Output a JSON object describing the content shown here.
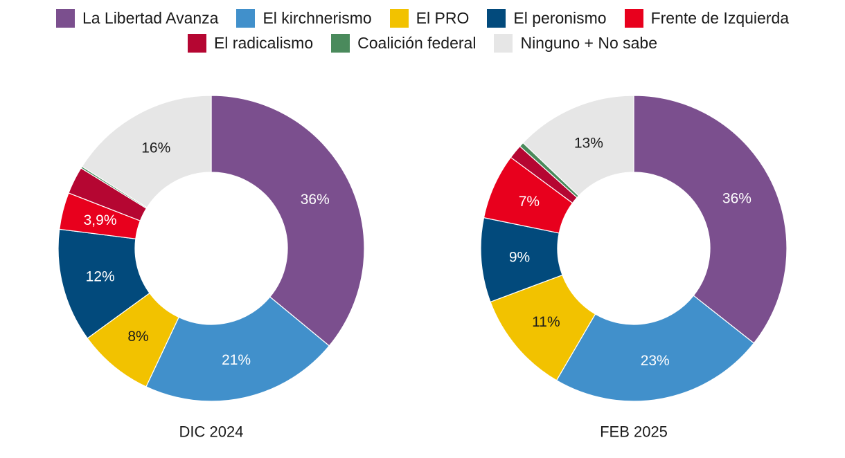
{
  "legend": [
    {
      "name": "La Libertad Avanza",
      "color": "#7b4f8e"
    },
    {
      "name": "El kirchnerismo",
      "color": "#4190cb"
    },
    {
      "name": "El PRO",
      "color": "#f2c200"
    },
    {
      "name": "El peronismo",
      "color": "#024a7c"
    },
    {
      "name": "Frente de Izquierda",
      "color": "#e8001d"
    },
    {
      "name": "El radicalismo",
      "color": "#b50632"
    },
    {
      "name": "Coalición federal",
      "color": "#4a8a5c"
    },
    {
      "name": "Ninguno + No sabe",
      "color": "#e6e6e6"
    }
  ],
  "chart_data": [
    {
      "type": "pie",
      "donut": true,
      "title": "DIC 2024",
      "unit": "%",
      "categories": [
        "La Libertad Avanza",
        "El kirchnerismo",
        "El PRO",
        "El peronismo",
        "Frente de Izquierda",
        "El radicalismo",
        "Coalición federal",
        "Ninguno + No sabe"
      ],
      "values": [
        36,
        21,
        8,
        12,
        3.9,
        2.9,
        0.2,
        16
      ],
      "labels": [
        "36%",
        "21%",
        "8%",
        "12%",
        "3,9%",
        "",
        "",
        "16%"
      ]
    },
    {
      "type": "pie",
      "donut": true,
      "title": "FEB 2025",
      "unit": "%",
      "categories": [
        "La Libertad Avanza",
        "El kirchnerismo",
        "El PRO",
        "El peronismo",
        "Frente de Izquierda",
        "El radicalismo",
        "Coalición federal",
        "Ninguno + No sabe"
      ],
      "values": [
        36,
        23,
        11,
        9,
        7,
        1.5,
        0.5,
        13
      ],
      "labels": [
        "36%",
        "23%",
        "11%",
        "9%",
        "7%",
        "",
        "",
        "13%"
      ]
    }
  ]
}
